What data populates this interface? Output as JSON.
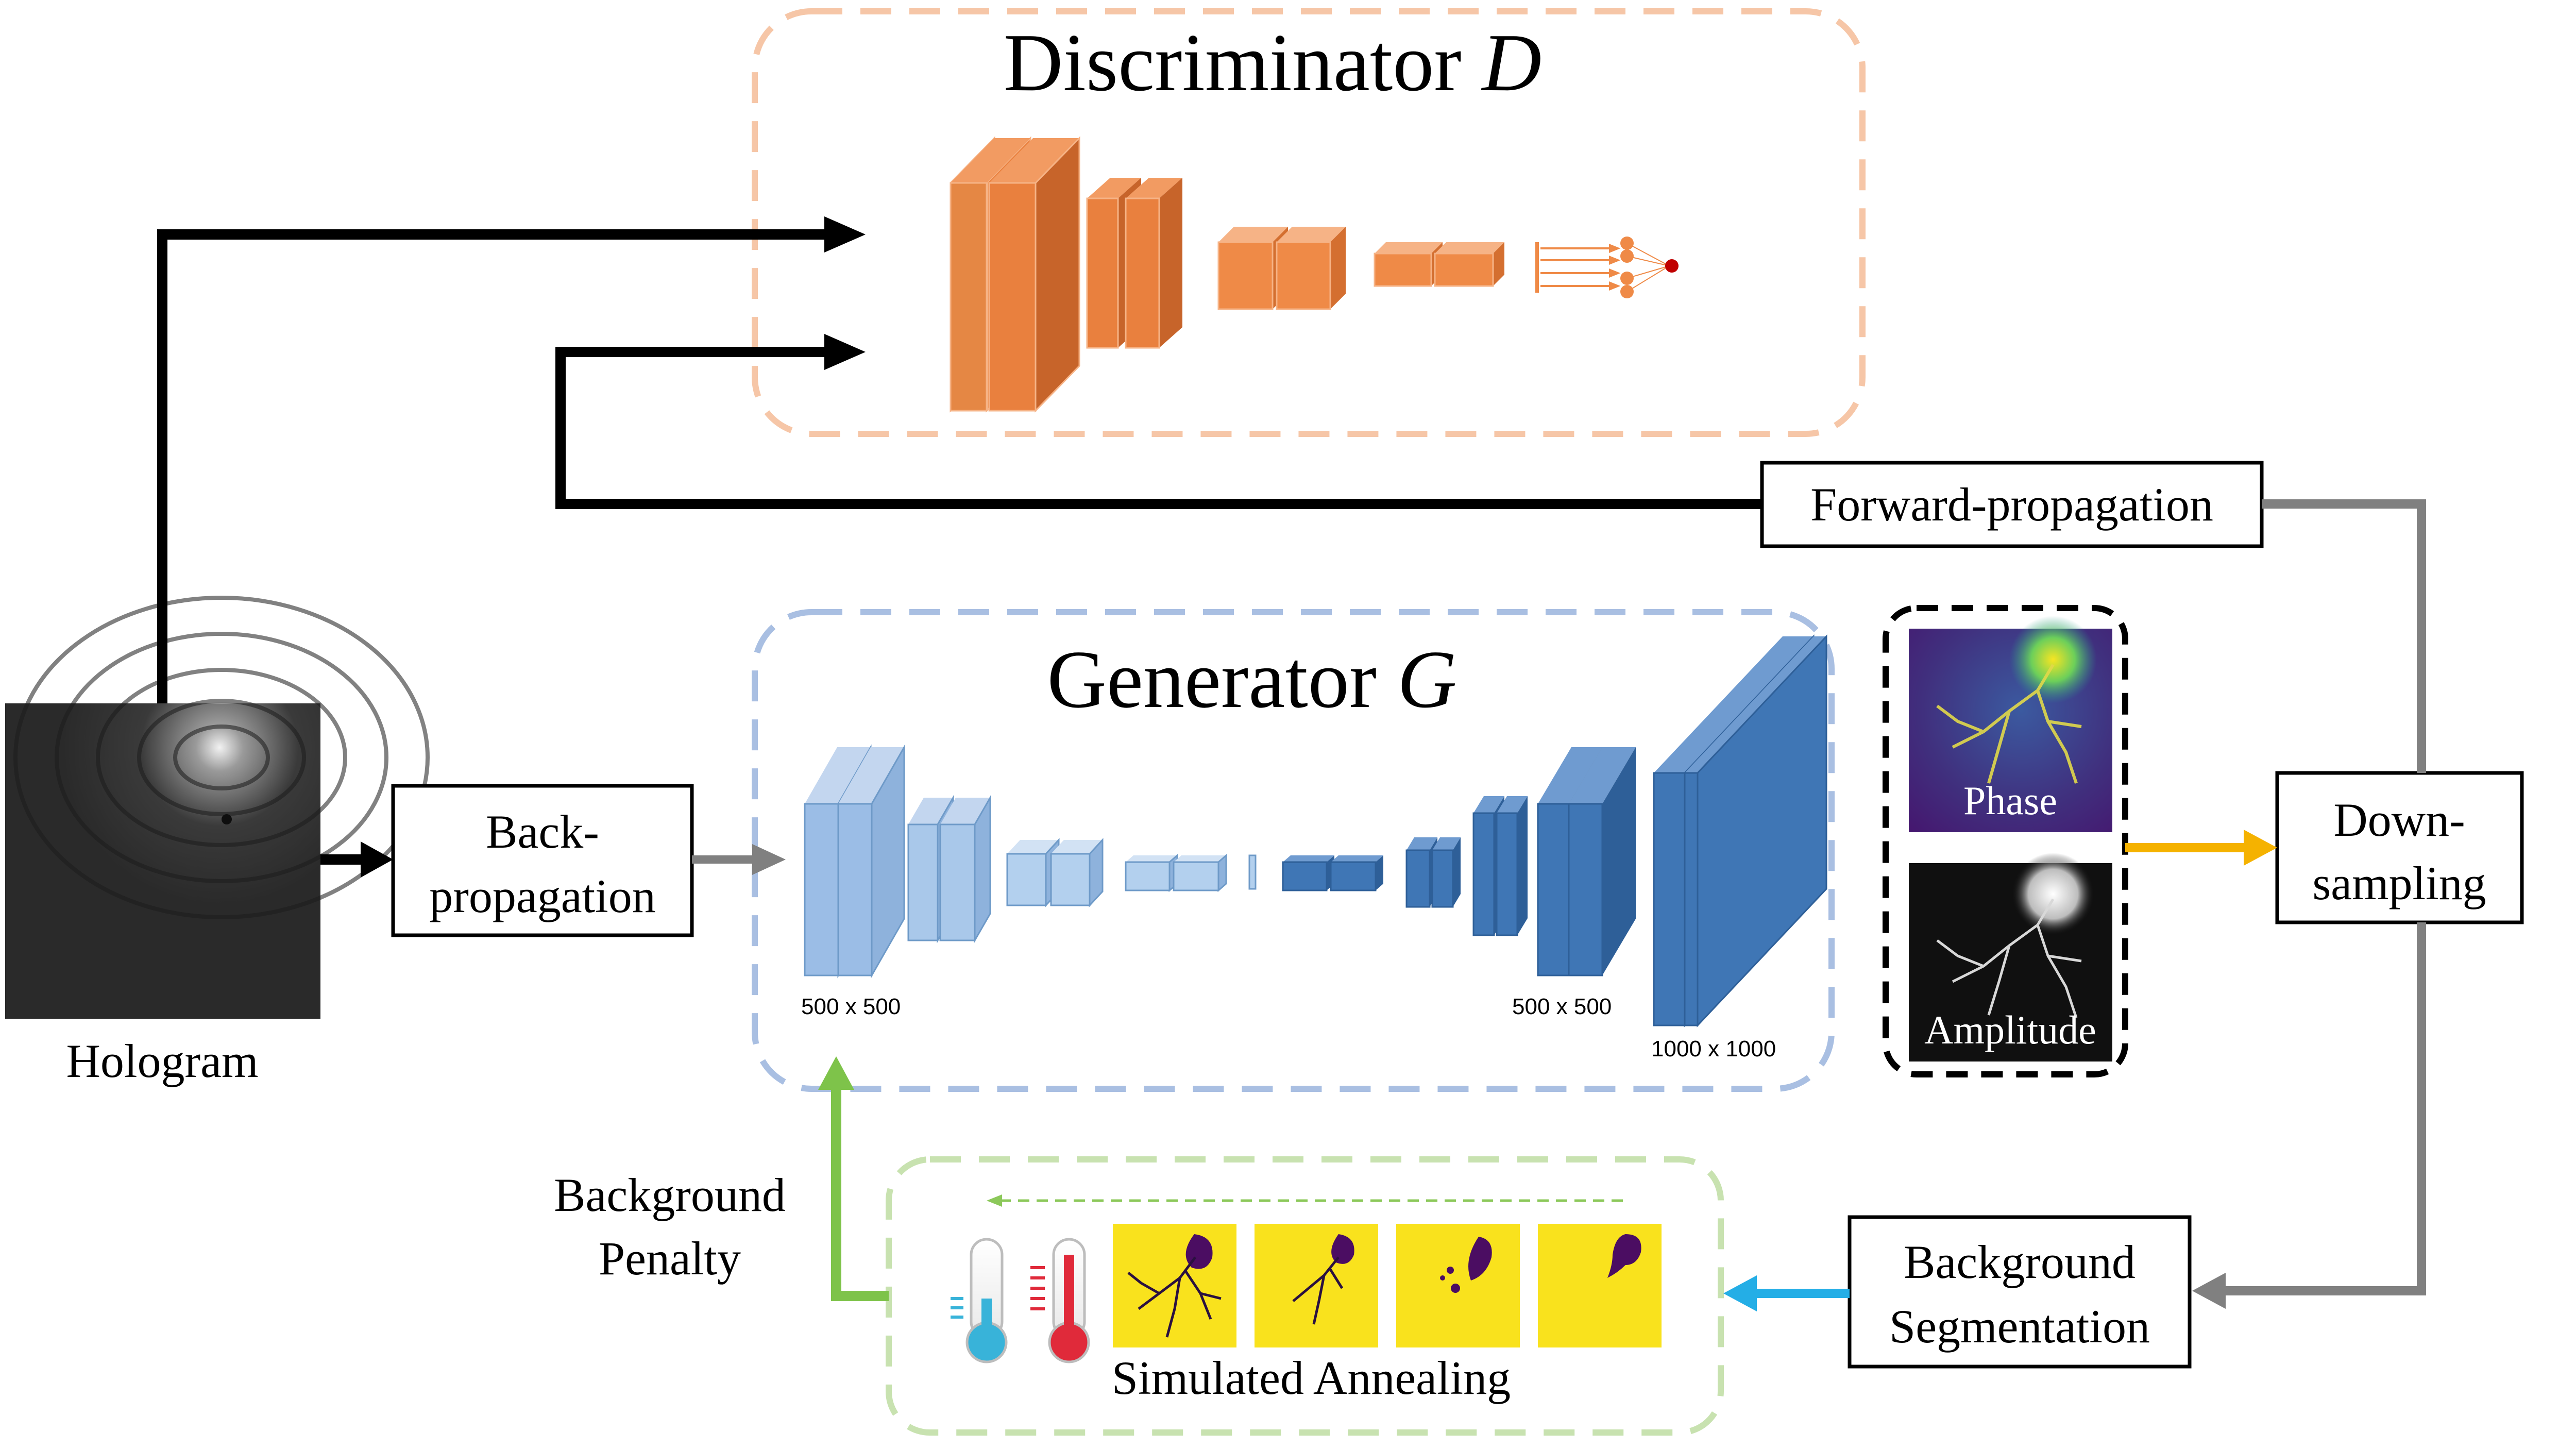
{
  "discriminator": {
    "title": "Discriminator ",
    "symbol": "D"
  },
  "generator": {
    "title": "Generator ",
    "symbol": "G"
  },
  "hologram": {
    "label": "Hologram"
  },
  "back_propagation": {
    "line1": "Back-",
    "line2": "propagation"
  },
  "forward_propagation": {
    "label": "Forward-propagation"
  },
  "down_sampling": {
    "line1": "Down-",
    "line2": "sampling"
  },
  "background_segmentation": {
    "line1": "Background",
    "line2": "Segmentation"
  },
  "background_penalty": {
    "line1": "Background",
    "line2": "Penalty"
  },
  "outputs": {
    "phase": "Phase",
    "amplitude": "Amplitude"
  },
  "sizes": {
    "in1": "500 x 500",
    "out1": "500 x 500",
    "out2": "1000 x 1000"
  },
  "annealing": {
    "label": "Simulated Annealing"
  },
  "colors": {
    "discriminator_box": "#f6c6a7",
    "discriminator_layer": "#e9803e",
    "generator_box": "#a9bfe2",
    "generator_light": "#9bbde6",
    "generator_dark": "#3f76b5",
    "annealing_box": "#c8e2b0",
    "annealing_tile": "#f9e21d",
    "arrow_black": "#000000",
    "arrow_gray": "#808080",
    "arrow_orange": "#f5b200",
    "arrow_blue": "#24aee6",
    "arrow_green": "#7ec34a"
  }
}
